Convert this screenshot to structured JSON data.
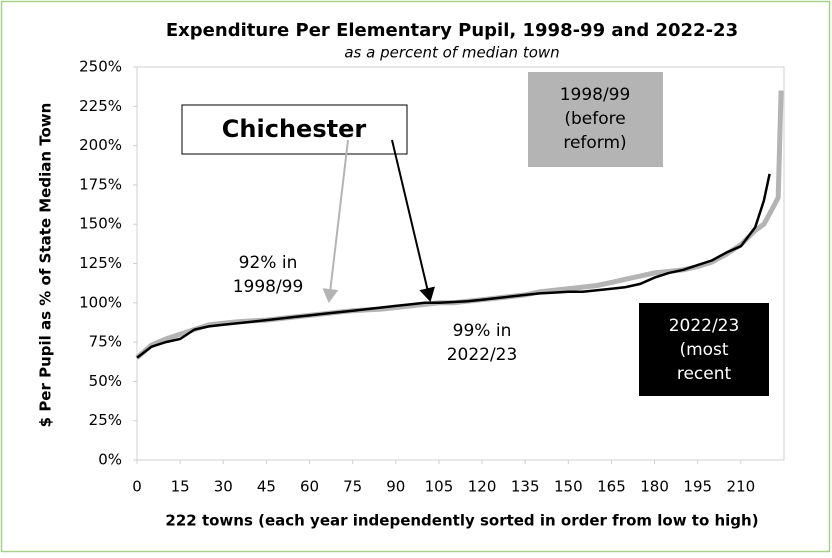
{
  "chart_data": {
    "type": "line",
    "title": "Expenditure Per Elementary Pupil, 1998-99 and 2022-23",
    "subtitle": "as a percent of median town",
    "x_label": "222 towns (each year independently sorted in order from low to high)",
    "y_label": "$ Per Pupil as % of State Median Town",
    "xlim": [
      0,
      225
    ],
    "xticks": [
      0,
      15,
      30,
      45,
      60,
      75,
      90,
      105,
      120,
      135,
      150,
      165,
      180,
      195,
      210
    ],
    "ylim": [
      0,
      250
    ],
    "yticks": [
      {
        "value": 0,
        "label": "0%"
      },
      {
        "value": 25,
        "label": "25%"
      },
      {
        "value": 50,
        "label": "50%"
      },
      {
        "value": 75,
        "label": "75%"
      },
      {
        "value": 100,
        "label": "100%"
      },
      {
        "value": 125,
        "label": "125%"
      },
      {
        "value": 150,
        "label": "150%"
      },
      {
        "value": 175,
        "label": "175%"
      },
      {
        "value": 200,
        "label": "200%"
      },
      {
        "value": 225,
        "label": "225%"
      },
      {
        "value": 250,
        "label": "250%"
      }
    ],
    "grid": false,
    "series": [
      {
        "name": "1998/99",
        "color": "#b4b4b4",
        "x": [
          0,
          5,
          10,
          15,
          20,
          25,
          30,
          35,
          40,
          45,
          50,
          55,
          60,
          65,
          70,
          75,
          80,
          85,
          90,
          95,
          100,
          105,
          110,
          115,
          120,
          125,
          130,
          135,
          140,
          145,
          150,
          155,
          160,
          165,
          170,
          175,
          180,
          185,
          190,
          195,
          200,
          205,
          210,
          215,
          218,
          221,
          223,
          224
        ],
        "values": [
          65,
          73,
          77,
          80,
          83,
          86,
          87,
          88,
          88.5,
          89,
          90,
          91,
          92,
          93,
          94,
          95,
          95.5,
          96,
          97,
          98,
          99,
          100,
          100,
          101,
          102,
          103,
          104,
          105,
          107,
          108,
          109,
          110,
          111,
          113,
          115,
          117,
          119,
          120,
          121,
          123,
          126,
          131,
          137,
          146,
          150,
          160,
          167,
          235
        ]
      },
      {
        "name": "2022/23",
        "color": "#000000",
        "x": [
          0,
          5,
          10,
          15,
          20,
          25,
          30,
          35,
          40,
          45,
          50,
          55,
          60,
          65,
          70,
          75,
          80,
          85,
          90,
          95,
          100,
          105,
          110,
          115,
          120,
          125,
          130,
          135,
          140,
          145,
          150,
          155,
          160,
          165,
          170,
          175,
          180,
          185,
          190,
          195,
          200,
          205,
          210,
          215,
          218,
          220
        ],
        "values": [
          65,
          72,
          75,
          77,
          83,
          85,
          86,
          87,
          88,
          89,
          90,
          91,
          92,
          93,
          94,
          95,
          96,
          97,
          98,
          99,
          100,
          100,
          100.5,
          101,
          102,
          103,
          104,
          105,
          106,
          106.5,
          107,
          107,
          108,
          109,
          110,
          112,
          116,
          119,
          121,
          124,
          127,
          132,
          136,
          148,
          165,
          182
        ]
      }
    ],
    "annotations": [
      [
        "Chichester"
      ],
      [
        "92% in",
        "1998/99"
      ],
      [
        "99% in",
        "2022/23"
      ],
      [
        "1998/99",
        "(before",
        "reform)"
      ],
      [
        "2022/23",
        "(most",
        "recent"
      ]
    ]
  }
}
